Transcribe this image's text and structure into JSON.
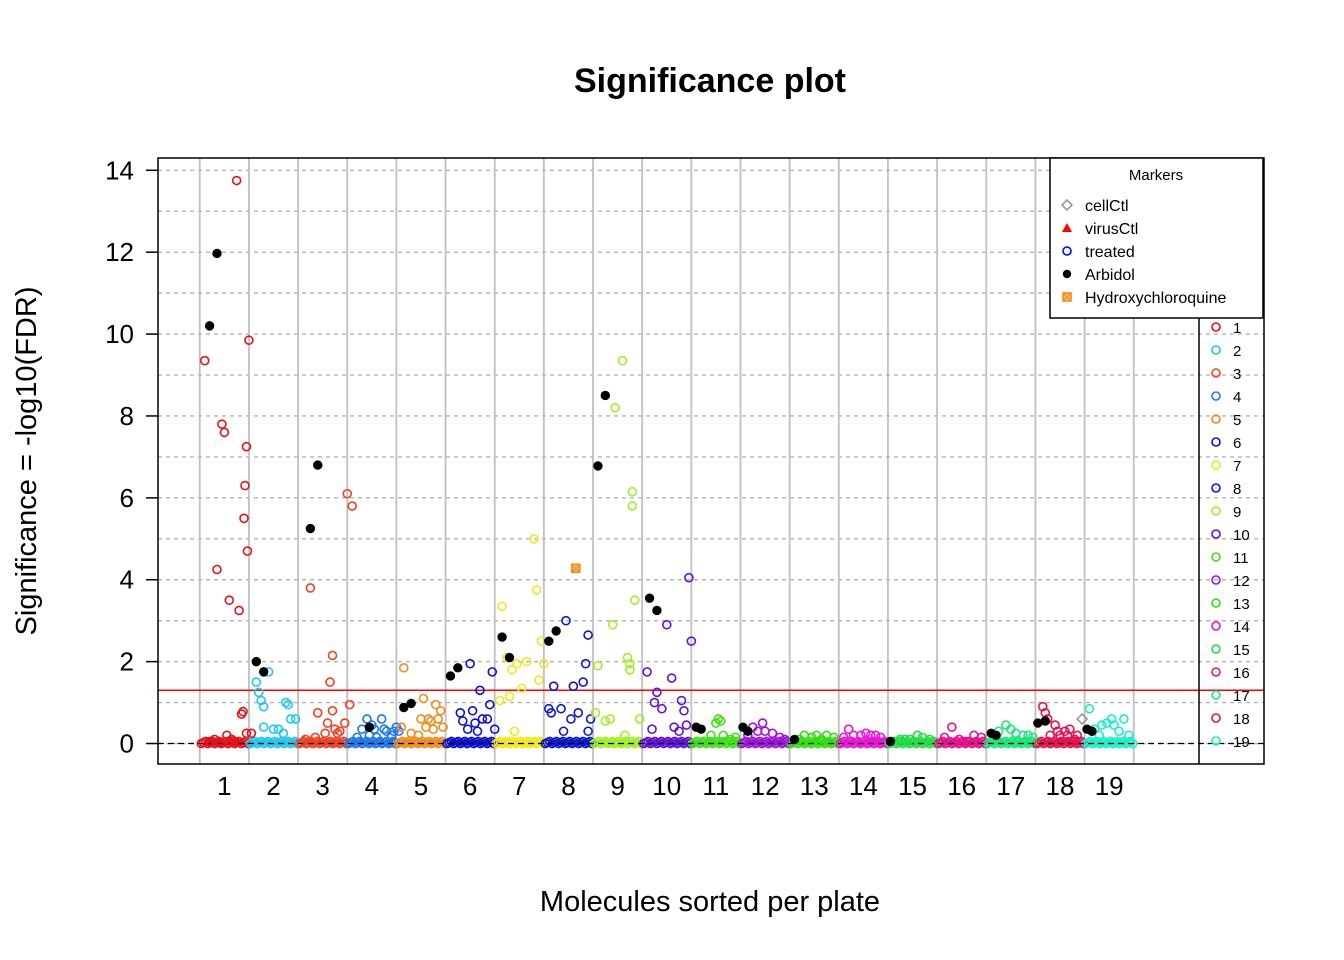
{
  "chart_data": {
    "type": "scatter",
    "title": "Significance plot",
    "xlabel": "Molecules sorted per plate",
    "ylabel": "Significance = -log10(FDR)",
    "ylim": [
      -0.5,
      14.3
    ],
    "xlim": [
      0,
      22.5
    ],
    "yticks": [
      0,
      2,
      4,
      6,
      8,
      10,
      12,
      14
    ],
    "grid": true,
    "threshold": {
      "value": 1.3,
      "color": "#ff0000"
    },
    "baseline": {
      "value": 0,
      "style": "dashed",
      "color": "#000000"
    },
    "plates": [
      "1",
      "2",
      "3",
      "4",
      "5",
      "6",
      "7",
      "8",
      "9",
      "10",
      "11",
      "12",
      "13",
      "14",
      "15",
      "16",
      "17",
      "18",
      "19"
    ],
    "plate_colors": [
      "#e8101a",
      "#1ec8f0",
      "#f04020",
      "#1a78f0",
      "#f08c1a",
      "#0a10d8",
      "#f0e818",
      "#0a18d0",
      "#a0f028",
      "#6010d8",
      "#40e018",
      "#a010e0",
      "#30e010",
      "#f010d8",
      "#20e040",
      "#e8108c",
      "#18e878",
      "#e81050",
      "#18f0c8"
    ],
    "marker_legend": {
      "title": "Markers",
      "position": "top-right",
      "items": [
        {
          "label": "cellCtl",
          "shape": "diamond-open",
          "color": "#999999"
        },
        {
          "label": "virusCtl",
          "shape": "triangle-filled",
          "color": "#ff0000"
        },
        {
          "label": "treated",
          "shape": "circle-open",
          "color": "#0000ff"
        },
        {
          "label": "Arbidol",
          "shape": "circle-filled",
          "color": "#000000"
        },
        {
          "label": "Hydroxychloroquine",
          "shape": "square-x",
          "color": "#f08c1a"
        }
      ]
    },
    "series": [
      {
        "plate": "1",
        "treated": [
          [
            0.1,
            9.35
          ],
          [
            0.35,
            4.25
          ],
          [
            0.45,
            7.8
          ],
          [
            0.5,
            7.6
          ],
          [
            0.6,
            3.5
          ],
          [
            0.75,
            13.75
          ],
          [
            0.8,
            3.25
          ],
          [
            0.85,
            0.72
          ],
          [
            0.88,
            0.78
          ],
          [
            0.9,
            5.5
          ],
          [
            0.92,
            6.3
          ],
          [
            0.95,
            7.25
          ],
          [
            0.97,
            4.7
          ],
          [
            1.0,
            9.85
          ],
          [
            0.2,
            0.05
          ],
          [
            0.3,
            0.1
          ],
          [
            0.4,
            0.02
          ],
          [
            0.55,
            0.2
          ],
          [
            0.65,
            0.1
          ],
          [
            0.7,
            0.05
          ],
          [
            0.95,
            0.25
          ],
          [
            1.05,
            0.25
          ]
        ],
        "arbidol": [
          [
            0.2,
            10.2
          ],
          [
            0.35,
            11.97
          ]
        ]
      },
      {
        "plate": "2",
        "treated": [
          [
            1.15,
            1.5
          ],
          [
            1.2,
            1.25
          ],
          [
            1.25,
            1.05
          ],
          [
            1.3,
            0.9
          ],
          [
            1.4,
            1.75
          ],
          [
            1.3,
            0.4
          ],
          [
            1.5,
            0.35
          ],
          [
            1.6,
            0.35
          ],
          [
            1.75,
            1.0
          ],
          [
            1.8,
            0.95
          ],
          [
            1.85,
            0.6
          ],
          [
            1.95,
            0.6
          ],
          [
            1.7,
            0.25
          ]
        ],
        "arbidol": [
          [
            1.15,
            2.0
          ],
          [
            1.3,
            1.75
          ]
        ]
      },
      {
        "plate": "3",
        "treated": [
          [
            2.25,
            3.8
          ],
          [
            2.4,
            0.75
          ],
          [
            2.55,
            0.25
          ],
          [
            2.6,
            0.5
          ],
          [
            2.65,
            1.5
          ],
          [
            2.7,
            2.15
          ],
          [
            2.7,
            0.8
          ],
          [
            2.75,
            0.35
          ],
          [
            2.8,
            0.25
          ],
          [
            2.85,
            0.3
          ],
          [
            2.95,
            0.5
          ],
          [
            3.0,
            6.1
          ],
          [
            3.1,
            5.8
          ],
          [
            3.05,
            0.95
          ],
          [
            2.35,
            0.15
          ],
          [
            2.15,
            0.1
          ]
        ],
        "arbidol": [
          [
            2.25,
            5.25
          ],
          [
            2.4,
            6.8
          ]
        ]
      },
      {
        "plate": "4",
        "treated": [
          [
            3.2,
            0.15
          ],
          [
            3.3,
            0.35
          ],
          [
            3.4,
            0.6
          ],
          [
            3.45,
            0.2
          ],
          [
            3.5,
            0.45
          ],
          [
            3.55,
            0.35
          ],
          [
            3.6,
            0.15
          ],
          [
            3.7,
            0.6
          ],
          [
            3.75,
            0.35
          ],
          [
            3.8,
            0.3
          ],
          [
            3.9,
            0.2
          ],
          [
            3.95,
            0.3
          ],
          [
            4.0,
            0.4
          ],
          [
            4.05,
            0.3
          ]
        ],
        "arbidol": [
          [
            3.45,
            0.4
          ]
        ]
      },
      {
        "plate": "5",
        "treated": [
          [
            4.1,
            0.4
          ],
          [
            4.15,
            1.85
          ],
          [
            4.3,
            0.25
          ],
          [
            4.45,
            0.2
          ],
          [
            4.5,
            0.6
          ],
          [
            4.55,
            1.1
          ],
          [
            4.6,
            0.4
          ],
          [
            4.65,
            0.6
          ],
          [
            4.7,
            0.55
          ],
          [
            4.75,
            0.35
          ],
          [
            4.8,
            0.95
          ],
          [
            4.85,
            0.6
          ],
          [
            4.9,
            0.8
          ],
          [
            4.95,
            0.4
          ]
        ],
        "arbidol": [
          [
            4.15,
            0.88
          ],
          [
            4.3,
            0.98
          ]
        ]
      },
      {
        "plate": "6",
        "treated": [
          [
            5.3,
            0.75
          ],
          [
            5.35,
            0.55
          ],
          [
            5.45,
            0.35
          ],
          [
            5.5,
            1.95
          ],
          [
            5.55,
            0.8
          ],
          [
            5.6,
            0.5
          ],
          [
            5.65,
            0.3
          ],
          [
            5.7,
            1.3
          ],
          [
            5.75,
            0.6
          ],
          [
            5.85,
            0.6
          ],
          [
            5.9,
            0.95
          ],
          [
            5.95,
            1.75
          ],
          [
            6.0,
            0.35
          ]
        ],
        "arbidol": [
          [
            5.1,
            1.65
          ],
          [
            5.25,
            1.85
          ]
        ]
      },
      {
        "plate": "7",
        "treated": [
          [
            6.1,
            1.05
          ],
          [
            6.15,
            3.35
          ],
          [
            6.25,
            2.1
          ],
          [
            6.3,
            1.15
          ],
          [
            6.35,
            1.8
          ],
          [
            6.45,
            1.95
          ],
          [
            6.55,
            1.35
          ],
          [
            6.65,
            2.0
          ],
          [
            6.8,
            5.0
          ],
          [
            6.85,
            3.75
          ],
          [
            6.9,
            1.55
          ],
          [
            6.95,
            2.5
          ],
          [
            7.0,
            1.95
          ],
          [
            6.4,
            0.3
          ]
        ],
        "arbidol": [
          [
            6.15,
            2.6
          ],
          [
            6.3,
            2.1
          ]
        ]
      },
      {
        "plate": "8",
        "treated": [
          [
            7.1,
            0.85
          ],
          [
            7.15,
            0.75
          ],
          [
            7.2,
            1.4
          ],
          [
            7.35,
            0.85
          ],
          [
            7.45,
            3.0
          ],
          [
            7.55,
            0.6
          ],
          [
            7.6,
            1.4
          ],
          [
            7.7,
            0.75
          ],
          [
            7.8,
            1.5
          ],
          [
            7.85,
            1.95
          ],
          [
            7.9,
            2.65
          ],
          [
            7.95,
            0.6
          ],
          [
            7.4,
            0.3
          ],
          [
            7.9,
            0.3
          ]
        ],
        "arbidol": [
          [
            7.1,
            2.5
          ],
          [
            7.25,
            2.75
          ]
        ],
        "hydroxychloroquine": [
          [
            7.65,
            4.28
          ]
        ]
      },
      {
        "plate": "9",
        "treated": [
          [
            8.05,
            0.75
          ],
          [
            8.1,
            1.9
          ],
          [
            8.25,
            0.55
          ],
          [
            8.35,
            0.6
          ],
          [
            8.45,
            8.2
          ],
          [
            8.4,
            2.9
          ],
          [
            8.6,
            9.35
          ],
          [
            8.7,
            2.1
          ],
          [
            8.75,
            1.95
          ],
          [
            8.75,
            1.8
          ],
          [
            8.8,
            6.15
          ],
          [
            8.8,
            5.8
          ],
          [
            8.85,
            3.5
          ],
          [
            8.95,
            0.6
          ],
          [
            8.65,
            0.2
          ]
        ],
        "arbidol": [
          [
            8.1,
            6.78
          ],
          [
            8.25,
            8.5
          ]
        ]
      },
      {
        "plate": "10",
        "treated": [
          [
            9.1,
            1.75
          ],
          [
            9.2,
            0.35
          ],
          [
            9.25,
            1.0
          ],
          [
            9.3,
            1.25
          ],
          [
            9.4,
            0.85
          ],
          [
            9.5,
            2.9
          ],
          [
            9.6,
            1.6
          ],
          [
            9.65,
            0.4
          ],
          [
            9.75,
            0.3
          ],
          [
            9.8,
            1.05
          ],
          [
            9.85,
            0.8
          ],
          [
            9.9,
            0.45
          ],
          [
            9.95,
            4.05
          ],
          [
            10.0,
            2.5
          ]
        ],
        "arbidol": [
          [
            9.15,
            3.55
          ],
          [
            9.3,
            3.25
          ]
        ]
      },
      {
        "plate": "11",
        "treated": [
          [
            10.4,
            0.2
          ],
          [
            10.5,
            0.5
          ],
          [
            10.55,
            0.6
          ],
          [
            10.6,
            0.55
          ],
          [
            10.65,
            0.2
          ],
          [
            10.8,
            0.1
          ],
          [
            10.9,
            0.15
          ]
        ],
        "arbidol": [
          [
            10.1,
            0.4
          ],
          [
            10.2,
            0.35
          ]
        ]
      },
      {
        "plate": "12",
        "treated": [
          [
            11.15,
            0.2
          ],
          [
            11.25,
            0.4
          ],
          [
            11.35,
            0.3
          ],
          [
            11.45,
            0.5
          ],
          [
            11.5,
            0.3
          ],
          [
            11.65,
            0.25
          ],
          [
            11.8,
            0.15
          ],
          [
            11.9,
            0.1
          ]
        ],
        "arbidol": [
          [
            11.05,
            0.4
          ],
          [
            11.15,
            0.3
          ]
        ]
      },
      {
        "plate": "13",
        "treated": [
          [
            12.2,
            0.1
          ],
          [
            12.3,
            0.2
          ],
          [
            12.45,
            0.15
          ],
          [
            12.55,
            0.2
          ],
          [
            12.65,
            0.1
          ],
          [
            12.75,
            0.2
          ],
          [
            12.9,
            0.15
          ]
        ],
        "arbidol": [
          [
            12.1,
            0.1
          ]
        ]
      },
      {
        "plate": "14",
        "treated": [
          [
            13.1,
            0.15
          ],
          [
            13.2,
            0.35
          ],
          [
            13.3,
            0.2
          ],
          [
            13.45,
            0.2
          ],
          [
            13.55,
            0.25
          ],
          [
            13.65,
            0.2
          ],
          [
            13.75,
            0.2
          ],
          [
            13.85,
            0.15
          ]
        ],
        "arbidol": []
      },
      {
        "plate": "15",
        "treated": [
          [
            14.1,
            0.05
          ],
          [
            14.25,
            0.1
          ],
          [
            14.35,
            0.1
          ],
          [
            14.45,
            0.1
          ],
          [
            14.6,
            0.2
          ],
          [
            14.7,
            0.15
          ],
          [
            14.85,
            0.1
          ]
        ],
        "arbidol": [
          [
            14.05,
            0.05
          ]
        ]
      },
      {
        "plate": "16",
        "treated": [
          [
            15.15,
            0.15
          ],
          [
            15.3,
            0.4
          ],
          [
            15.45,
            0.1
          ],
          [
            15.6,
            0.05
          ],
          [
            15.75,
            0.2
          ],
          [
            15.9,
            0.15
          ]
        ],
        "arbidol": []
      },
      {
        "plate": "17",
        "treated": [
          [
            16.25,
            0.3
          ],
          [
            16.4,
            0.45
          ],
          [
            16.5,
            0.35
          ],
          [
            16.6,
            0.25
          ],
          [
            16.75,
            0.2
          ],
          [
            16.85,
            0.2
          ],
          [
            16.95,
            0.15
          ]
        ],
        "arbidol": [
          [
            16.1,
            0.25
          ],
          [
            16.2,
            0.2
          ]
        ]
      },
      {
        "plate": "18",
        "treated": [
          [
            17.15,
            0.9
          ],
          [
            17.2,
            0.75
          ],
          [
            17.25,
            0.6
          ],
          [
            17.3,
            0.2
          ],
          [
            17.4,
            0.45
          ],
          [
            17.45,
            0.3
          ],
          [
            17.5,
            0.2
          ],
          [
            17.6,
            0.3
          ],
          [
            17.65,
            0.2
          ],
          [
            17.7,
            0.35
          ],
          [
            17.8,
            0.1
          ],
          [
            17.85,
            0.2
          ]
        ],
        "arbidol": [
          [
            17.05,
            0.5
          ],
          [
            17.2,
            0.55
          ]
        ]
      },
      {
        "plate": "19",
        "treated": [
          [
            18.1,
            0.85
          ],
          [
            18.2,
            0.35
          ],
          [
            18.3,
            0.2
          ],
          [
            18.35,
            0.45
          ],
          [
            18.45,
            0.5
          ],
          [
            18.55,
            0.6
          ],
          [
            18.6,
            0.45
          ],
          [
            18.7,
            0.3
          ],
          [
            18.8,
            0.6
          ],
          [
            18.9,
            0.2
          ]
        ],
        "arbidol": [
          [
            18.05,
            0.35
          ],
          [
            18.15,
            0.3
          ]
        ],
        "cellCtl": [
          [
            17.95,
            0.6
          ]
        ]
      }
    ]
  }
}
